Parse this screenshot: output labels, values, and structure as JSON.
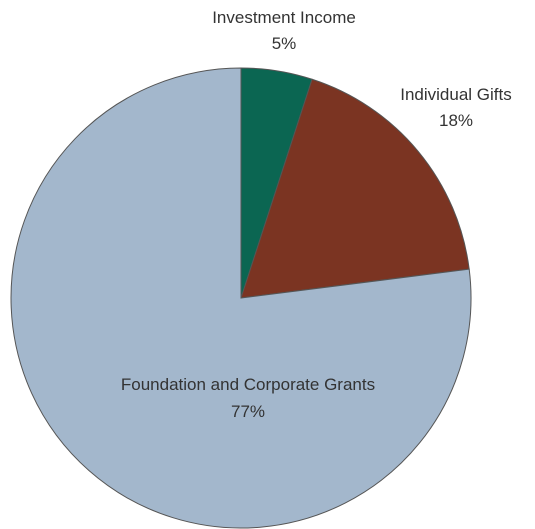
{
  "chart_data": {
    "type": "pie",
    "title": "",
    "slices": [
      {
        "label": "Investment Income",
        "value": 5,
        "value_label": "5%",
        "color": "#0b6652"
      },
      {
        "label": "Individual Gifts",
        "value": 18,
        "value_label": "18%",
        "color": "#7b3422"
      },
      {
        "label": "Foundation and Corporate Grants",
        "value": 77,
        "value_label": "77%",
        "color": "#a3b7cc"
      }
    ],
    "start_angle": "12 o'clock",
    "direction": "clockwise",
    "legend": "none",
    "labels": "category name with percentage"
  }
}
